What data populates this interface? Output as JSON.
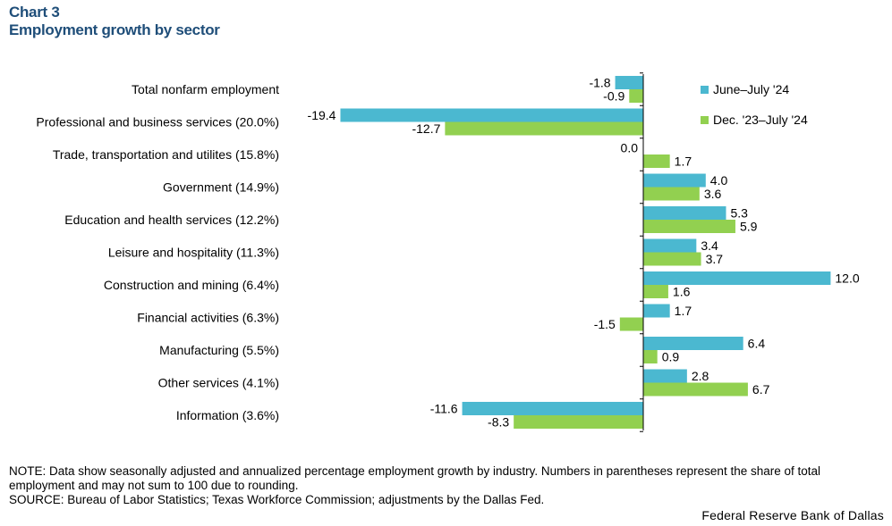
{
  "header": {
    "chart_label": "Chart 3",
    "title": "Employment growth by sector"
  },
  "chart_data": {
    "type": "bar",
    "orientation": "horizontal",
    "title": "Employment growth by sector",
    "xlabel": "",
    "ylabel": "",
    "categories": [
      "Total nonfarm employment",
      "Professional and business services (20.0%)",
      "Trade, transportation and utilites (15.8%)",
      "Government  (14.9%)",
      "Education and health services (12.2%)",
      "Leisure and hospitality (11.3%)",
      "Construction and mining (6.4%)",
      "Financial activities  (6.3%)",
      "Manufacturing  (5.5%)",
      "Other services  (4.1%)",
      "Information  (3.6%)"
    ],
    "series": [
      {
        "name": "June–July  '24",
        "color": "#4bb8d0",
        "values": [
          -1.8,
          -19.4,
          0.0,
          4.0,
          5.3,
          3.4,
          12.0,
          1.7,
          6.4,
          2.8,
          -11.6
        ],
        "labels": [
          "-1.8",
          "-19.4",
          "0.0",
          "4.0",
          "5.3",
          "3.4",
          "12.0",
          "1.7",
          "6.4",
          "2.8",
          "-11.6"
        ]
      },
      {
        "name": "Dec. '23–July  '24",
        "color": "#92d050",
        "values": [
          -0.9,
          -12.7,
          1.7,
          3.6,
          5.9,
          3.7,
          1.6,
          -1.5,
          0.9,
          6.7,
          -8.3
        ],
        "labels": [
          "-0.9",
          "-12.7",
          "1.7",
          "3.6",
          "5.9",
          "3.7",
          "1.6",
          "-1.5",
          "0.9",
          "6.7",
          "-8.3"
        ]
      }
    ],
    "xlim": [
      -20.5,
      12.5
    ],
    "legend": "top-right",
    "grid": false
  },
  "footer": {
    "note": "NOTE: Data show seasonally adjusted and annualized percentage employment growth by industry. Numbers in parentheses represent the share of total employment and may not sum to 100 due to rounding.",
    "source": "SOURCE: Bureau of Labor Statistics; Texas Workforce Commission; adjustments by the Dallas Fed.",
    "credit": "Federal Reserve Bank of Dallas"
  }
}
